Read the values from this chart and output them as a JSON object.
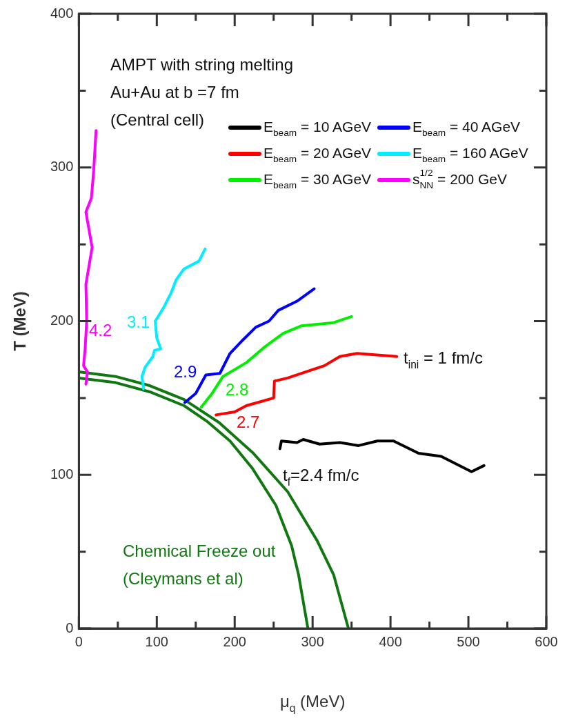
{
  "chart_data": {
    "type": "line",
    "xlabel": "μ$_{q}$ (MeV)",
    "ylabel": "T (MeV)",
    "xlim": [
      0,
      600
    ],
    "ylim": [
      0,
      400
    ],
    "xticks": [
      0,
      {
        "value": 50,
        "label": null
      },
      100,
      {
        "value": 150,
        "label": null
      },
      200,
      {
        "value": 250,
        "label": null
      },
      300,
      {
        "value": 350,
        "label": null
      },
      400,
      {
        "value": 450,
        "label": null
      },
      500,
      {
        "value": 550,
        "label": null
      },
      600
    ],
    "yticks": [
      0,
      {
        "value": 50,
        "label": null
      },
      100,
      {
        "value": 150,
        "label": null
      },
      200,
      {
        "value": 250,
        "label": null
      },
      300,
      {
        "value": 350,
        "label": null
      },
      400
    ],
    "grid": false,
    "legend": "top right",
    "marker": "none",
    "line_style": "solid",
    "series": [
      {
        "name": "E$_{beam}$ = 10 AGeV",
        "color": "#000000",
        "x": [
          258,
          260,
          280,
          288,
          309,
          335,
          359,
          383,
          404,
          436,
          465,
          504,
          520
        ],
        "values": [
          117,
          122,
          121,
          123,
          120,
          121,
          119,
          122,
          122,
          114,
          112,
          102,
          106
        ]
      },
      {
        "name": "E$_{beam}$ = 20 AGeV",
        "color": "#ff0000",
        "x": [
          176,
          200,
          215,
          250,
          251,
          268,
          297,
          315,
          335,
          357,
          408
        ],
        "values": [
          139,
          141,
          145,
          150,
          161,
          163,
          168,
          171,
          177,
          179,
          177
        ]
      },
      {
        "name": "E$_{beam}$ = 30 AGeV",
        "color": "#00ee00",
        "x": [
          157,
          171,
          185,
          215,
          238,
          262,
          286,
          327,
          350
        ],
        "values": [
          144,
          153,
          164,
          173,
          183,
          192,
          197,
          199,
          203
        ]
      },
      {
        "name": "E$_{beam}$ = 40 AGeV",
        "color": "#0000ff",
        "x": [
          136,
          150,
          163,
          181,
          194,
          211,
          227,
          244,
          256,
          280,
          302
        ],
        "values": [
          147,
          153,
          165,
          166,
          179,
          188,
          196,
          200,
          207,
          213,
          221
        ]
      },
      {
        "name": "E$_{beam}$ = 160 AGeV",
        "color": "#00eeff",
        "x": [
          83,
          81,
          85,
          95,
          97,
          105,
          100,
          98,
          109,
          118,
          125,
          135,
          154,
          162
        ],
        "values": [
          156,
          164,
          170,
          177,
          181,
          182,
          189,
          200,
          209,
          218,
          227,
          234,
          239,
          247
        ]
      },
      {
        "name": "s$_{NN}$$^{1/2}$ = 200 GeV",
        "color": "#ff00ff",
        "x": [
          9,
          11,
          6,
          8,
          10,
          9,
          17,
          9,
          16,
          19,
          22
        ],
        "values": [
          159,
          167,
          171,
          182,
          200,
          224,
          248,
          271,
          280,
          298,
          324
        ]
      },
      {
        "color": "#117711",
        "x": [
          0,
          47,
          91,
          135,
          164,
          194,
          223,
          253,
          273,
          282,
          294
        ],
        "values": [
          163,
          160,
          154,
          145,
          135,
          122,
          104,
          80,
          54,
          35,
          0
        ]
      },
      {
        "color": "#117711",
        "x": [
          0,
          47,
          91,
          135,
          180,
          224,
          268,
          306,
          327,
          346
        ],
        "values": [
          167,
          164,
          158,
          149,
          134,
          114,
          89,
          57,
          35,
          0
        ]
      }
    ],
    "annotations": [
      "AMPT with string melting",
      "Au+Au at b =7 fm",
      "(Central cell)",
      "4.2",
      "3.1",
      "2.9",
      "2.8",
      "2.7",
      "t$_{ini}$ = 1 fm/c",
      "t$_{f}$=2.4 fm/c",
      "Chemical Freeze out",
      "(Cleymans et al)"
    ]
  }
}
